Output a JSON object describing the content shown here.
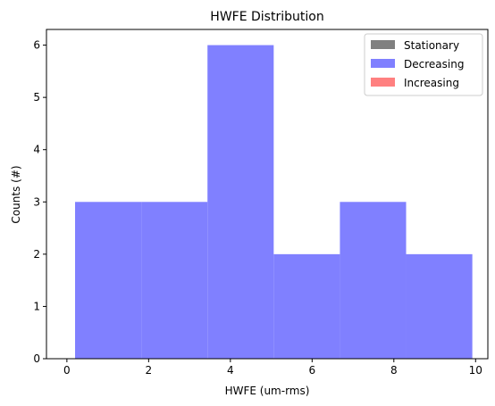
{
  "chart_data": {
    "type": "bar",
    "title": "HWFE Distribution",
    "xlabel": "HWFE (um-rms)",
    "ylabel": "Counts (#)",
    "xlim": [
      -0.5,
      10.3
    ],
    "ylim": [
      0,
      6.3
    ],
    "xticks": [
      0,
      2,
      4,
      6,
      8,
      10
    ],
    "yticks": [
      0,
      1,
      2,
      3,
      4,
      5,
      6
    ],
    "legend_position": "top-right",
    "series": [
      {
        "name": "Stationary",
        "color": "#808080",
        "bins": []
      },
      {
        "name": "Decreasing",
        "color": "#8080ff",
        "bins": [
          {
            "x0": 0.2,
            "x1": 1.82,
            "count": 3
          },
          {
            "x0": 1.82,
            "x1": 3.44,
            "count": 3
          },
          {
            "x0": 3.44,
            "x1": 5.06,
            "count": 6
          },
          {
            "x0": 5.06,
            "x1": 6.68,
            "count": 2
          },
          {
            "x0": 6.68,
            "x1": 8.3,
            "count": 3
          },
          {
            "x0": 8.3,
            "x1": 9.92,
            "count": 2
          }
        ]
      },
      {
        "name": "Increasing",
        "color": "#ff8080",
        "bins": []
      }
    ]
  }
}
